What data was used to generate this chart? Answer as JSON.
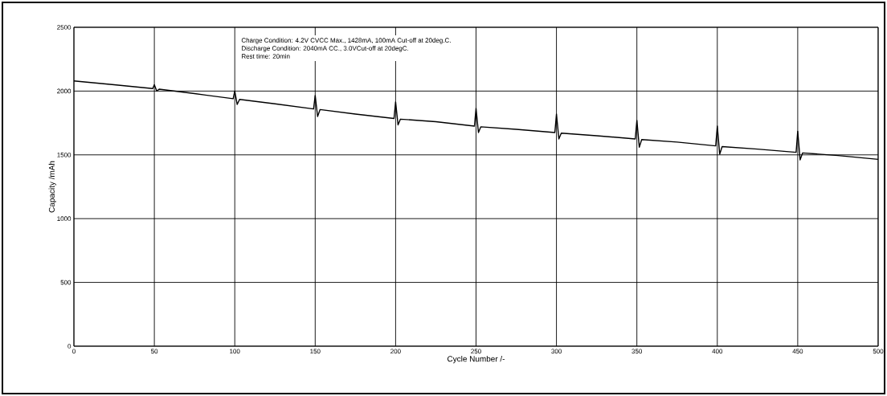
{
  "chart_data": {
    "type": "line",
    "xlabel": "Cycle Number /-",
    "ylabel": "Capacity /mAh",
    "annotations": [
      "Charge Condition: 4.2V CVCC Max., 1428mA, 100mA Cut-off at 20deg.C.",
      "Discharge Condition: 2040mA CC., 3.0VCut-off at 20degC.",
      "Rest time: 20min"
    ],
    "x": [
      0,
      25,
      49,
      50,
      51.5,
      53,
      75,
      99,
      100,
      101.5,
      103,
      125,
      149,
      150,
      151.5,
      153,
      175,
      199,
      200,
      201.5,
      203,
      225,
      249,
      250,
      251.5,
      253,
      275,
      299,
      300,
      301.5,
      303,
      325,
      349,
      350,
      351.5,
      353,
      375,
      399,
      400,
      401.5,
      403,
      425,
      449,
      450,
      451.5,
      453,
      475,
      500
    ],
    "values": [
      2080,
      2050,
      2020,
      2050,
      2000,
      2015,
      1980,
      1940,
      2000,
      1895,
      1935,
      1900,
      1860,
      1965,
      1800,
      1855,
      1820,
      1785,
      1915,
      1735,
      1780,
      1760,
      1725,
      1865,
      1675,
      1720,
      1700,
      1675,
      1820,
      1625,
      1670,
      1650,
      1625,
      1770,
      1560,
      1620,
      1600,
      1570,
      1725,
      1505,
      1565,
      1545,
      1520,
      1685,
      1460,
      1515,
      1495,
      1465
    ],
    "color": "#000000",
    "xlim": [
      0,
      500
    ],
    "ylim": [
      0,
      2500
    ],
    "xticks": [
      0,
      50,
      100,
      150,
      200,
      250,
      300,
      350,
      400,
      450,
      500
    ],
    "yticks": [
      0,
      500,
      1000,
      1500,
      2000,
      2500
    ],
    "grid": true
  }
}
